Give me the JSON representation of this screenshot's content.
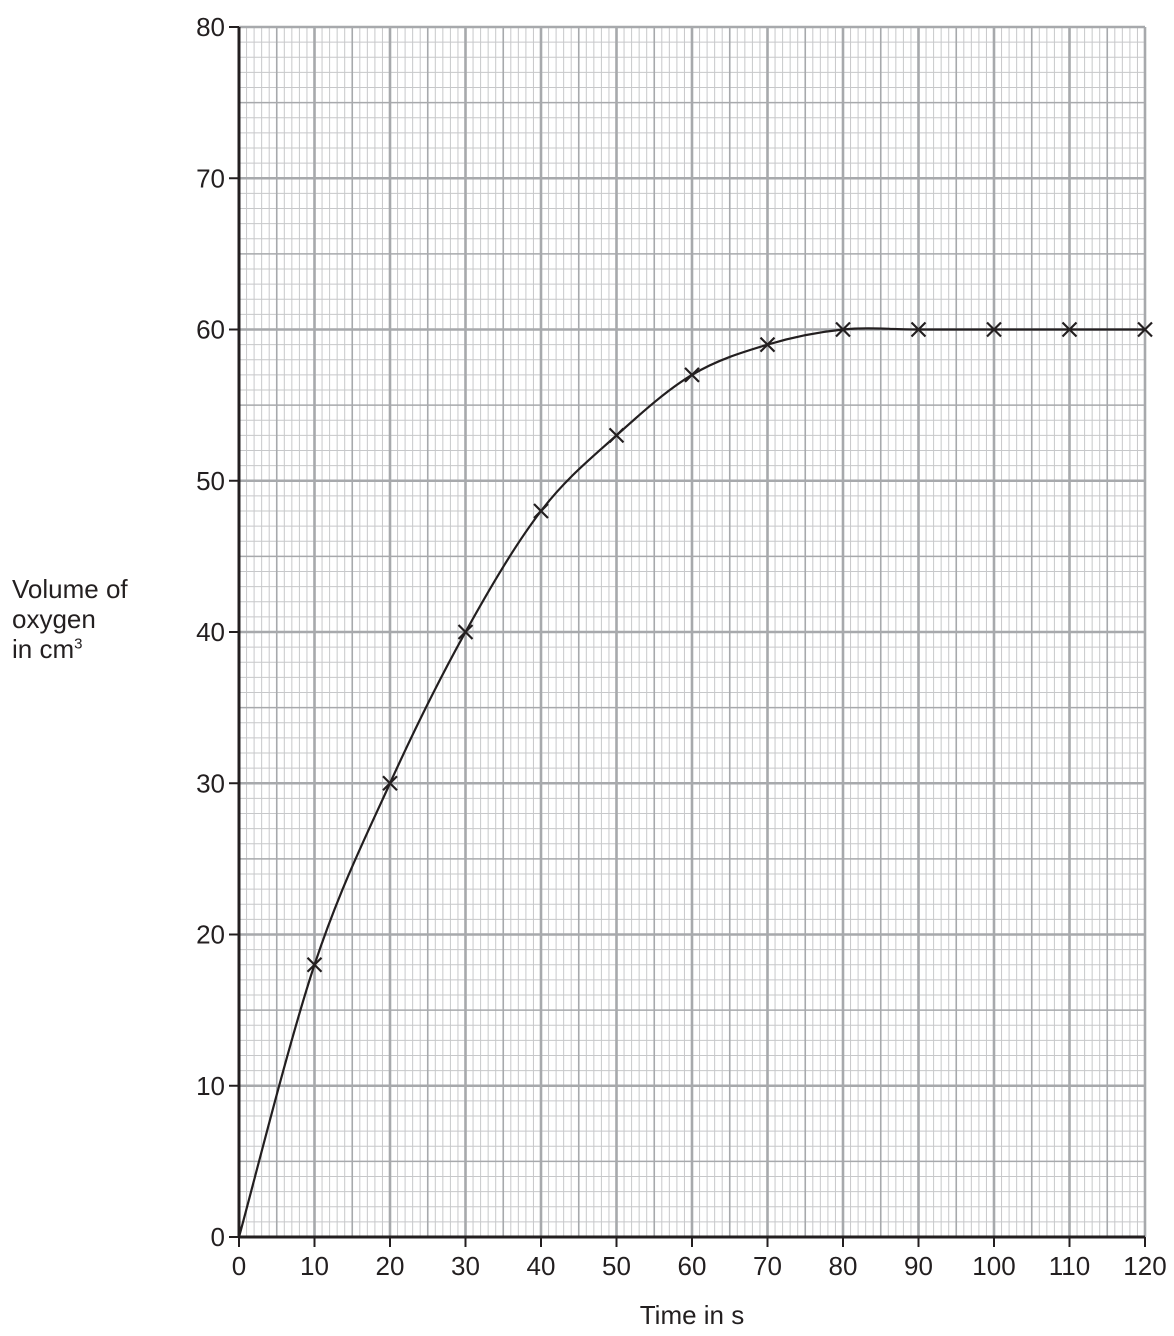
{
  "chart_data": {
    "type": "line",
    "title": "",
    "xlabel": "Time in s",
    "ylabel": {
      "line1": "Volume of",
      "line2": "oxygen",
      "line3_main": "in cm",
      "line3_sup": "3"
    },
    "xlim": [
      0,
      120
    ],
    "ylim": [
      0,
      80
    ],
    "x_ticks": [
      0,
      10,
      20,
      30,
      40,
      50,
      60,
      70,
      80,
      90,
      100,
      110,
      120
    ],
    "y_ticks": [
      0,
      10,
      20,
      30,
      40,
      50,
      60,
      70,
      80
    ],
    "grid": true,
    "marker": "x",
    "series": [
      {
        "points": [
          {
            "x": 0,
            "y": 0
          },
          {
            "x": 10,
            "y": 18
          },
          {
            "x": 20,
            "y": 30
          },
          {
            "x": 30,
            "y": 40
          },
          {
            "x": 40,
            "y": 48
          },
          {
            "x": 50,
            "y": 53
          },
          {
            "x": 60,
            "y": 57
          },
          {
            "x": 70,
            "y": 59
          },
          {
            "x": 80,
            "y": 60
          },
          {
            "x": 90,
            "y": 60
          },
          {
            "x": 100,
            "y": 60
          },
          {
            "x": 110,
            "y": 60
          },
          {
            "x": 120,
            "y": 60
          }
        ],
        "marked_points": [
          {
            "x": 10,
            "y": 18
          },
          {
            "x": 20,
            "y": 30
          },
          {
            "x": 30,
            "y": 40
          },
          {
            "x": 40,
            "y": 48
          },
          {
            "x": 50,
            "y": 53
          },
          {
            "x": 60,
            "y": 57
          },
          {
            "x": 70,
            "y": 59
          },
          {
            "x": 80,
            "y": 60
          },
          {
            "x": 90,
            "y": 60
          },
          {
            "x": 100,
            "y": 60
          },
          {
            "x": 110,
            "y": 60
          },
          {
            "x": 120,
            "y": 60
          }
        ]
      }
    ],
    "colors": {
      "ink": "#231f20",
      "grid_major": "#a7a9ac",
      "grid_minor": "#c7c8ca"
    }
  }
}
